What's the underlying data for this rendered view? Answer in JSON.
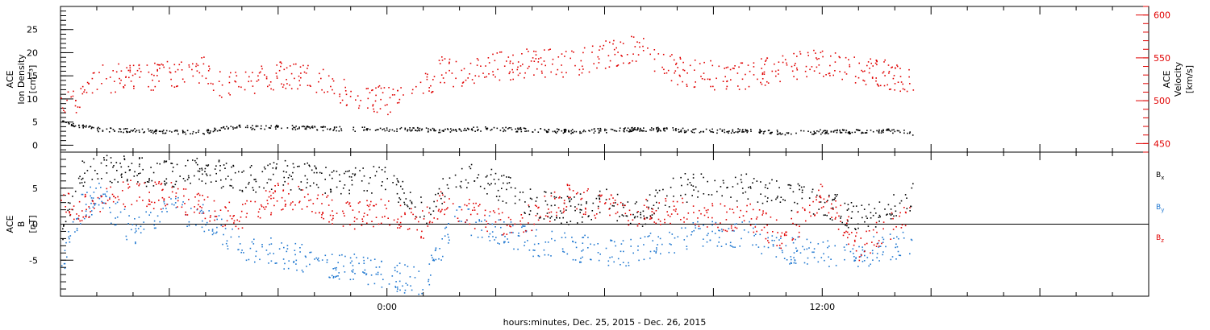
{
  "chart_data": {
    "type": "scatter",
    "xlabel": "hours:minutes, Dec. 25, 2015 - Dec. 26, 2015",
    "x_unit": "hours relative to Dec. 26, 2015 00:00",
    "xlim": [
      -9,
      21
    ],
    "x_ticks": [
      {
        "value": 0,
        "label": "0:00"
      },
      {
        "value": 12,
        "label": "12:00"
      }
    ],
    "panels": [
      {
        "name": "plasma",
        "left_axis": {
          "label_lines": [
            "ACE",
            "Ion Density",
            "[cm⁻³]"
          ],
          "ylim": [
            -1.5,
            30
          ],
          "ticks": [
            0,
            5,
            10,
            15,
            20,
            25
          ],
          "color": "#000000"
        },
        "right_axis": {
          "label_lines": [
            "ACE",
            "Velocity",
            "[km/s]"
          ],
          "ylim": [
            440,
            610
          ],
          "ticks": [
            450,
            500,
            550,
            600
          ],
          "color": "#e00000"
        },
        "series": [
          {
            "name": "Ion Density",
            "axis": "left",
            "color": "#000000",
            "x": [
              -9.0,
              -8.6,
              -8.0,
              -7.0,
              -6.0,
              -5.0,
              -4.5,
              -4.0,
              -3.0,
              -2.0,
              -1.0,
              0.0,
              1.0,
              1.5,
              2.0,
              3.0,
              4.0,
              5.0,
              6.0,
              7.0,
              8.0,
              9.0,
              10.0,
              11.0,
              12.0,
              13.0,
              14.0,
              14.5
            ],
            "values": [
              5.5,
              4.5,
              3.5,
              3.3,
              3.0,
              3.0,
              4.0,
              4.0,
              4.0,
              3.8,
              3.6,
              3.5,
              3.5,
              3.3,
              3.6,
              3.6,
              3.4,
              3.1,
              3.3,
              3.6,
              3.4,
              3.2,
              3.2,
              2.8,
              3.0,
              3.1,
              3.2,
              2.6
            ]
          },
          {
            "name": "Velocity",
            "axis": "right",
            "color": "#e00000",
            "x": [
              -9.0,
              -8.5,
              -8.0,
              -7.0,
              -6.0,
              -5.0,
              -4.5,
              -4.0,
              -3.0,
              -2.0,
              -1.0,
              0.0,
              0.5,
              1.0,
              1.5,
              2.0,
              3.0,
              4.0,
              5.0,
              6.0,
              7.0,
              8.0,
              9.0,
              10.0,
              11.0,
              12.0,
              13.0,
              14.0,
              14.5
            ],
            "values": [
              505,
              500,
              525,
              530,
              530,
              535,
              515,
              520,
              530,
              525,
              510,
              500,
              505,
              515,
              535,
              530,
              540,
              545,
              545,
              555,
              560,
              535,
              530,
              530,
              540,
              545,
              535,
              530,
              525
            ]
          }
        ]
      },
      {
        "name": "magnetic-field",
        "left_axis": {
          "label_lines": [
            "ACE",
            "B",
            "[nT]"
          ],
          "ylim": [
            -10,
            10
          ],
          "ticks": [
            -5,
            0,
            5
          ],
          "color": "#000000"
        },
        "zero_line": true,
        "series": [
          {
            "name": "B",
            "subscript": "x",
            "color": "#000000",
            "x": [
              -9.0,
              -8.5,
              -8.0,
              -7.0,
              -6.0,
              -5.0,
              -4.0,
              -3.0,
              -2.0,
              -1.0,
              0.0,
              1.0,
              1.5,
              2.0,
              3.0,
              4.0,
              5.0,
              6.0,
              7.0,
              8.0,
              9.0,
              10.0,
              11.0,
              12.0,
              13.0,
              14.0,
              14.5
            ],
            "values": [
              -2.0,
              7.0,
              8.0,
              7.5,
              7.0,
              7.5,
              6.0,
              7.0,
              6.5,
              6.0,
              6.5,
              1.5,
              4.5,
              7.0,
              5.5,
              3.0,
              2.0,
              3.0,
              1.5,
              5.0,
              5.5,
              5.0,
              4.0,
              3.0,
              1.0,
              2.5,
              4.0
            ]
          },
          {
            "name": "B",
            "subscript": "y",
            "color": "#1f77d0",
            "x": [
              -9.0,
              -8.5,
              -8.0,
              -7.0,
              -6.0,
              -5.0,
              -4.0,
              -3.0,
              -2.0,
              -1.0,
              0.0,
              1.0,
              1.5,
              2.0,
              3.0,
              4.0,
              5.0,
              6.0,
              7.0,
              8.0,
              9.0,
              10.0,
              11.0,
              12.0,
              13.0,
              14.0,
              14.5
            ],
            "values": [
              -6.0,
              2.0,
              4.0,
              -1.0,
              2.0,
              1.0,
              -3.0,
              -4.0,
              -5.0,
              -6.0,
              -7.0,
              -8.0,
              -3.0,
              1.0,
              -1.0,
              -2.5,
              -3.0,
              -4.0,
              -3.5,
              -2.0,
              -1.0,
              -1.5,
              -3.5,
              -4.0,
              -4.0,
              -3.0,
              -2.0
            ]
          },
          {
            "name": "B",
            "subscript": "z",
            "color": "#e00000",
            "x": [
              -9.0,
              -8.5,
              -8.0,
              -7.0,
              -6.0,
              -5.0,
              -4.0,
              -3.0,
              -2.0,
              -1.0,
              0.0,
              1.0,
              1.5,
              2.0,
              3.0,
              4.0,
              5.0,
              6.0,
              7.0,
              8.0,
              9.0,
              10.0,
              11.0,
              12.0,
              13.0,
              14.0,
              14.5
            ],
            "values": [
              3.0,
              2.0,
              3.0,
              4.5,
              4.0,
              2.0,
              1.0,
              4.0,
              3.0,
              1.0,
              2.0,
              0.0,
              3.0,
              2.0,
              0.5,
              1.0,
              4.0,
              2.5,
              1.5,
              2.0,
              1.0,
              1.0,
              -2.0,
              4.5,
              -3.0,
              0.0,
              3.0
            ]
          }
        ]
      }
    ]
  }
}
